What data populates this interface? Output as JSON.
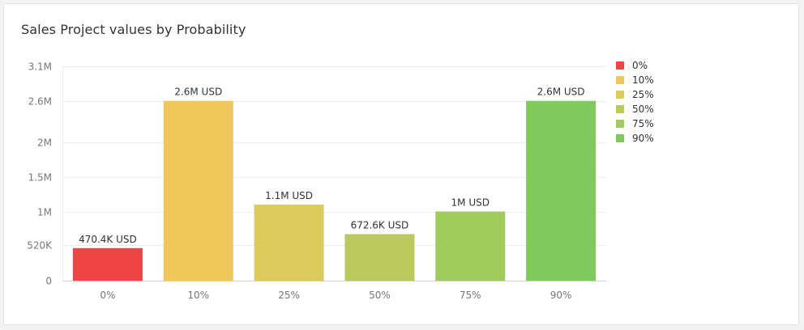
{
  "chart_data": {
    "type": "bar",
    "title": "Sales Project values by Probability",
    "categories": [
      "0%",
      "10%",
      "25%",
      "50%",
      "75%",
      "90%"
    ],
    "values": [
      470400,
      2600000,
      1100000,
      672600,
      1000000,
      2600000
    ],
    "value_labels": [
      "470.4K USD",
      "2.6M USD",
      "1.1M USD",
      "672.6K USD",
      "1M USD",
      "2.6M USD"
    ],
    "colors": [
      "#ee4444",
      "#f0c75a",
      "#dccb5a",
      "#bcc95c",
      "#9fcc5c",
      "#80c95c"
    ],
    "ylim": [
      0,
      3100000
    ],
    "yticks": [
      {
        "value": 0,
        "label": "0"
      },
      {
        "value": 520000,
        "label": "520K"
      },
      {
        "value": 1000000,
        "label": "1M"
      },
      {
        "value": 1500000,
        "label": "1.5M"
      },
      {
        "value": 2000000,
        "label": "2M"
      },
      {
        "value": 2600000,
        "label": "2.6M"
      },
      {
        "value": 3100000,
        "label": "3.1M"
      }
    ],
    "legend": {
      "position": "right",
      "items": [
        {
          "label": "0%",
          "color": "#ee4444"
        },
        {
          "label": "10%",
          "color": "#f0c75a"
        },
        {
          "label": "25%",
          "color": "#dccb5a"
        },
        {
          "label": "50%",
          "color": "#bcc95c"
        },
        {
          "label": "75%",
          "color": "#9fcc5c"
        },
        {
          "label": "90%",
          "color": "#80c95c"
        }
      ]
    },
    "grid": true
  }
}
